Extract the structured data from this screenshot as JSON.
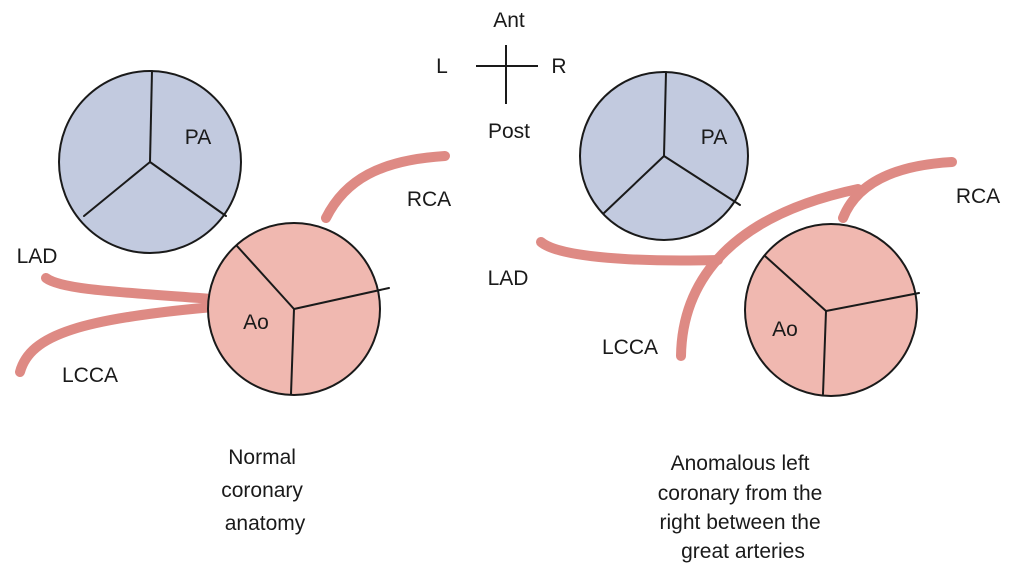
{
  "colors": {
    "pulmonary_artery_fill": "#c2cadf",
    "aorta_fill": "#f0b8b0",
    "vessel_stroke": "#de8a84",
    "outline": "#1a1a1a"
  },
  "orientation": {
    "anterior": "Ant",
    "posterior": "Post",
    "left": "L",
    "right": "R"
  },
  "normal": {
    "pa_label": "PA",
    "ao_label": "Ao",
    "rca_label": "RCA",
    "lad_label": "LAD",
    "lcca_label": "LCCA",
    "caption": [
      "Normal",
      "coronary",
      "anatomy"
    ]
  },
  "anomalous": {
    "pa_label": "PA",
    "ao_label": "Ao",
    "rca_label": "RCA",
    "lad_label": "LAD",
    "lcca_label": "LCCA",
    "caption": [
      "Anomalous left",
      "coronary from the",
      "right between the",
      "great arteries"
    ]
  }
}
